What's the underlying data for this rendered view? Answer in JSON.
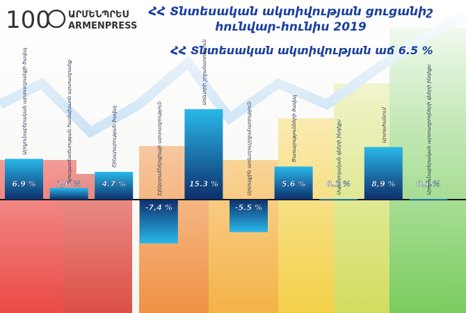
{
  "header": {
    "logo_number": "100",
    "logo_armenian": "ԱՐՄԵՆՊՐԵՍ",
    "logo_latin": "ARMENPRESS"
  },
  "chart_data": {
    "type": "bar",
    "title": [
      "ՀՀ Տնտեսական ակտիվության ցուցանիշ",
      "հունվար-հունիս  2019"
    ],
    "subtitle": "ՀՀ Տնտեսական ակտիվության աճ 6.5 %",
    "categories": [
      "Արդյունաբերական արտադրանքի ծավալ",
      "Գյուղատնտեսության համախառն արտադրանք",
      "Շինարարության ծավալ",
      "Էլեկտրաէներգիայի արտադրություն",
      "Առևտրի շրջանառություն",
      "Արտաքին առևտրաշրջանառություն",
      "Ծառայությունների ծավալ",
      "Սպառողական գների ինդեքս",
      "Արտահանում",
      "Արդյունաբերական արտադրողների գների ինդեքս"
    ],
    "values": [
      6.9,
      2.0,
      4.7,
      -7.4,
      15.3,
      -5.5,
      5.6,
      0.1,
      8.9,
      0.1
    ],
    "value_labels": [
      "6.9 %",
      "2,0 %",
      "4.7 %",
      "-7,4 %",
      "15.3 %",
      "-5.5 %",
      "5.6 %",
      "0.1 %",
      "8,9 %",
      "0.1 %"
    ],
    "color": "#2ab8ea"
  }
}
